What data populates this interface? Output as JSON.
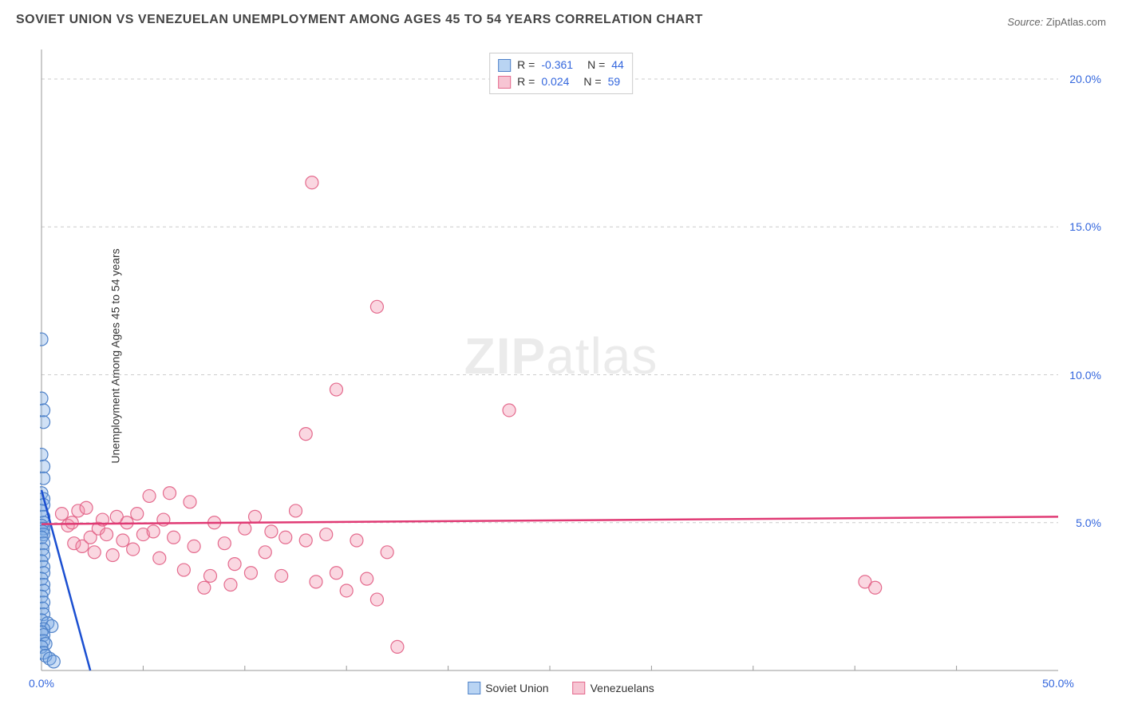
{
  "title": "SOVIET UNION VS VENEZUELAN UNEMPLOYMENT AMONG AGES 45 TO 54 YEARS CORRELATION CHART",
  "source_label": "Source:",
  "source_value": "ZipAtlas.com",
  "ylabel": "Unemployment Among Ages 45 to 54 years",
  "watermark_bold": "ZIP",
  "watermark_rest": "atlas",
  "chart": {
    "type": "scatter",
    "background_color": "#ffffff",
    "axis_color": "#999999",
    "grid_color": "#cccccc",
    "grid_dash": "4,4",
    "xlim": [
      0,
      50
    ],
    "ylim": [
      0,
      21
    ],
    "xticks_minor": [
      5,
      10,
      15,
      20,
      25,
      30,
      35,
      40,
      45
    ],
    "xticks_labeled": [
      {
        "v": 0,
        "t": "0.0%"
      },
      {
        "v": 50,
        "t": "50.0%"
      }
    ],
    "yticks": [
      {
        "v": 5,
        "t": "5.0%"
      },
      {
        "v": 10,
        "t": "10.0%"
      },
      {
        "v": 15,
        "t": "15.0%"
      },
      {
        "v": 20,
        "t": "20.0%"
      }
    ],
    "marker_radius": 8,
    "marker_stroke_width": 1.2,
    "series": [
      {
        "name": "Soviet Union",
        "swatch_fill": "#b9d4f3",
        "swatch_stroke": "#4f82c9",
        "marker_fill": "rgba(120,170,230,0.35)",
        "marker_stroke": "#4f82c9",
        "line_color": "#1b4fd1",
        "line_width": 2.5,
        "R": "-0.361",
        "N": "44",
        "trend": {
          "x1": 0.0,
          "y1": 6.1,
          "x2": 2.4,
          "y2": 0.0
        },
        "points": [
          [
            0.0,
            11.2
          ],
          [
            0.0,
            9.2
          ],
          [
            0.1,
            8.8
          ],
          [
            0.1,
            8.4
          ],
          [
            0.0,
            7.3
          ],
          [
            0.1,
            6.9
          ],
          [
            0.1,
            6.5
          ],
          [
            0.0,
            6.0
          ],
          [
            0.1,
            5.8
          ],
          [
            0.1,
            5.6
          ],
          [
            0.0,
            5.4
          ],
          [
            0.1,
            5.2
          ],
          [
            0.1,
            5.0
          ],
          [
            0.0,
            4.9
          ],
          [
            0.1,
            4.8
          ],
          [
            0.05,
            4.7
          ],
          [
            0.1,
            4.6
          ],
          [
            0.0,
            4.5
          ],
          [
            0.1,
            4.3
          ],
          [
            0.05,
            4.1
          ],
          [
            0.1,
            3.9
          ],
          [
            0.0,
            3.7
          ],
          [
            0.1,
            3.5
          ],
          [
            0.1,
            3.3
          ],
          [
            0.0,
            3.1
          ],
          [
            0.1,
            2.9
          ],
          [
            0.1,
            2.7
          ],
          [
            0.0,
            2.5
          ],
          [
            0.1,
            2.3
          ],
          [
            0.05,
            2.1
          ],
          [
            0.1,
            1.9
          ],
          [
            0.0,
            1.7
          ],
          [
            0.3,
            1.6
          ],
          [
            0.5,
            1.5
          ],
          [
            0.1,
            1.4
          ],
          [
            0.0,
            1.3
          ],
          [
            0.1,
            1.2
          ],
          [
            0.1,
            1.0
          ],
          [
            0.2,
            0.9
          ],
          [
            0.0,
            0.8
          ],
          [
            0.1,
            0.6
          ],
          [
            0.2,
            0.5
          ],
          [
            0.4,
            0.4
          ],
          [
            0.6,
            0.3
          ]
        ]
      },
      {
        "name": "Venezuelans",
        "swatch_fill": "#f7c5d3",
        "swatch_stroke": "#e46a8d",
        "marker_fill": "rgba(240,140,170,0.35)",
        "marker_stroke": "#e46a8d",
        "line_color": "#e03a74",
        "line_width": 2.5,
        "R": "0.024",
        "N": "59",
        "trend": {
          "x1": 0.0,
          "y1": 4.95,
          "x2": 50.0,
          "y2": 5.2
        },
        "points": [
          [
            13.3,
            16.5
          ],
          [
            16.5,
            12.3
          ],
          [
            14.5,
            9.5
          ],
          [
            23.0,
            8.8
          ],
          [
            13.0,
            8.0
          ],
          [
            40.5,
            3.0
          ],
          [
            41.0,
            2.8
          ],
          [
            1.0,
            5.3
          ],
          [
            1.3,
            4.9
          ],
          [
            1.5,
            5.0
          ],
          [
            1.6,
            4.3
          ],
          [
            1.8,
            5.4
          ],
          [
            2.0,
            4.2
          ],
          [
            2.2,
            5.5
          ],
          [
            2.4,
            4.5
          ],
          [
            2.6,
            4.0
          ],
          [
            2.8,
            4.8
          ],
          [
            3.0,
            5.1
          ],
          [
            3.2,
            4.6
          ],
          [
            3.5,
            3.9
          ],
          [
            3.7,
            5.2
          ],
          [
            4.0,
            4.4
          ],
          [
            4.2,
            5.0
          ],
          [
            4.5,
            4.1
          ],
          [
            4.7,
            5.3
          ],
          [
            5.0,
            4.6
          ],
          [
            5.3,
            5.9
          ],
          [
            5.5,
            4.7
          ],
          [
            5.8,
            3.8
          ],
          [
            6.0,
            5.1
          ],
          [
            6.3,
            6.0
          ],
          [
            6.5,
            4.5
          ],
          [
            7.0,
            3.4
          ],
          [
            7.3,
            5.7
          ],
          [
            7.5,
            4.2
          ],
          [
            8.0,
            2.8
          ],
          [
            8.3,
            3.2
          ],
          [
            8.5,
            5.0
          ],
          [
            9.0,
            4.3
          ],
          [
            9.3,
            2.9
          ],
          [
            9.5,
            3.6
          ],
          [
            10.0,
            4.8
          ],
          [
            10.3,
            3.3
          ],
          [
            10.5,
            5.2
          ],
          [
            11.0,
            4.0
          ],
          [
            11.3,
            4.7
          ],
          [
            11.8,
            3.2
          ],
          [
            12.0,
            4.5
          ],
          [
            12.5,
            5.4
          ],
          [
            13.0,
            4.4
          ],
          [
            13.5,
            3.0
          ],
          [
            14.0,
            4.6
          ],
          [
            14.5,
            3.3
          ],
          [
            15.0,
            2.7
          ],
          [
            15.5,
            4.4
          ],
          [
            16.0,
            3.1
          ],
          [
            16.5,
            2.4
          ],
          [
            17.0,
            4.0
          ],
          [
            17.5,
            0.8
          ]
        ]
      }
    ]
  },
  "bottom_legend": [
    {
      "label": "Soviet Union",
      "fill": "#b9d4f3",
      "stroke": "#4f82c9"
    },
    {
      "label": "Venezuelans",
      "fill": "#f7c5d3",
      "stroke": "#e46a8d"
    }
  ],
  "stats_rows": [
    {
      "fill": "#b9d4f3",
      "stroke": "#4f82c9",
      "R": "-0.361",
      "N": "44"
    },
    {
      "fill": "#f7c5d3",
      "stroke": "#e46a8d",
      "R": "0.024",
      "N": "59"
    }
  ]
}
